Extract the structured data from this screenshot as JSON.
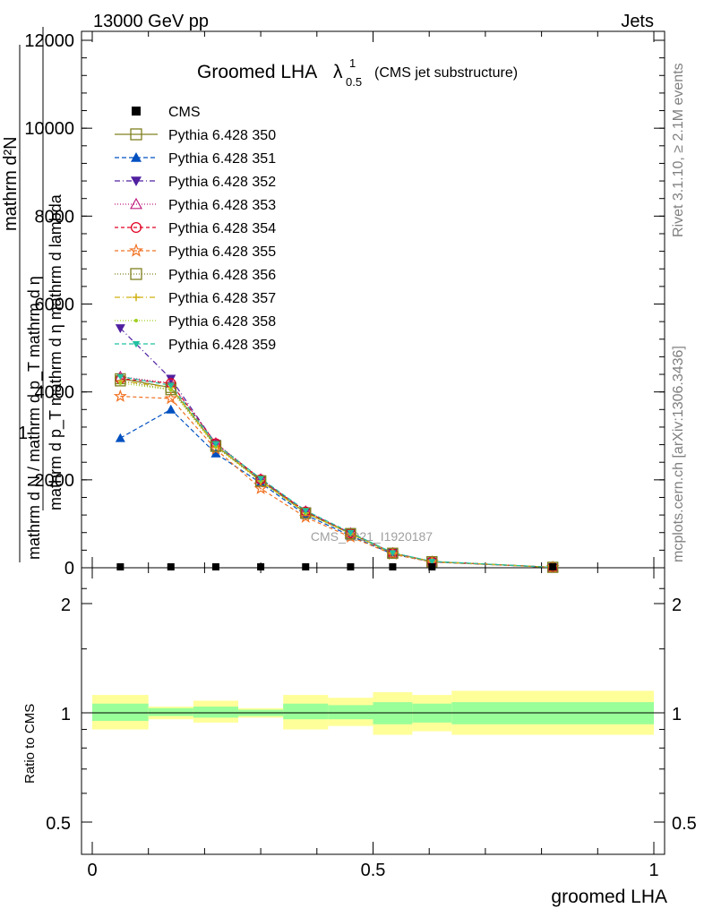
{
  "header": {
    "left": "13000 GeV pp",
    "right": "Jets"
  },
  "side_labels": {
    "rivet": "Rivet 3.1.10, ≥ 2.1M events",
    "mcplots": "mcplots.cern.ch [arXiv:1306.3436]"
  },
  "watermark": "CMS_2021_I1920187",
  "chart_data": {
    "type": "line",
    "title_main": "Groomed LHA",
    "title_lambda": "λ",
    "title_sup": "1",
    "title_sub": "0.5",
    "title_suffix": "(CMS jet substructure)",
    "ylabel_parts": [
      "1",
      "mathrm d N / mathrm d p",
      "T",
      "mathrm d η",
      "mathrm d",
      "2",
      "N",
      "mathrm d p",
      "T",
      "mathrm d η mathrm d lambda"
    ],
    "ylabel_main_top": "mathrm d²N",
    "ylabel_main_bottom": "mathrm d p_T mathrm d η mathrm d lambda",
    "ylabel_left_one": "1",
    "ylabel_left_frac": "mathrm d N / mathrm d p_T mathrm d η",
    "ylabel_ratio": "Ratio to CMS",
    "xlabel": "groomed LHA",
    "xlim": [
      0,
      1
    ],
    "ylim": [
      0,
      12000
    ],
    "yticks": [
      "0",
      "2000",
      "4000",
      "6000",
      "8000",
      "10000",
      "12000"
    ],
    "ratio_ylim": [
      0.42,
      2.4
    ],
    "ratio_yticks": [
      "0.5",
      "1",
      "2"
    ],
    "xticks": [
      "0",
      "0.5",
      "1"
    ],
    "x": [
      0.05,
      0.14,
      0.22,
      0.3,
      0.38,
      0.46,
      0.535,
      0.605,
      0.82
    ],
    "cms": [
      0,
      0,
      0,
      0,
      0,
      0,
      0,
      0,
      0
    ],
    "series": [
      {
        "name": "Pythia 6.428 350",
        "color": "#808020",
        "marker": "square-open",
        "dash": "",
        "values": [
          4300,
          4100,
          2780,
          1980,
          1250,
          780,
          330,
          140,
          10
        ]
      },
      {
        "name": "Pythia 6.428 351",
        "color": "#0050c0",
        "marker": "triangle-up",
        "dash": "5,3",
        "values": [
          2950,
          3600,
          2600,
          1930,
          1200,
          730,
          310,
          130,
          10
        ]
      },
      {
        "name": "Pythia 6.428 352",
        "color": "#5020a0",
        "marker": "triangle-down",
        "dash": "6,3,1,3",
        "values": [
          5450,
          4300,
          2820,
          2010,
          1280,
          790,
          340,
          140,
          10
        ]
      },
      {
        "name": "Pythia 6.428 353",
        "color": "#c02080",
        "marker": "triangle-open",
        "dash": "1,2",
        "values": [
          4350,
          4200,
          2840,
          2020,
          1290,
          790,
          340,
          140,
          10
        ]
      },
      {
        "name": "Pythia 6.428 354",
        "color": "#e00020",
        "marker": "circle-open",
        "dash": "4,3",
        "values": [
          4300,
          4200,
          2830,
          2010,
          1280,
          780,
          330,
          140,
          10
        ]
      },
      {
        "name": "Pythia 6.428 355",
        "color": "#f07020",
        "marker": "star-open",
        "dash": "4,3",
        "values": [
          3900,
          3850,
          2700,
          1800,
          1150,
          700,
          310,
          130,
          10
        ]
      },
      {
        "name": "Pythia 6.428 356",
        "color": "#808020",
        "marker": "square-open",
        "dash": "1,2",
        "values": [
          4250,
          4050,
          2760,
          1970,
          1240,
          770,
          330,
          140,
          10
        ]
      },
      {
        "name": "Pythia 6.428 357",
        "color": "#d0b010",
        "marker": "cross",
        "dash": "6,3,1,3",
        "values": [
          4250,
          4100,
          2770,
          1980,
          1250,
          780,
          330,
          140,
          10
        ]
      },
      {
        "name": "Pythia 6.428 358",
        "color": "#a0d020",
        "marker": "dot",
        "dash": "1,2",
        "values": [
          4200,
          4050,
          2750,
          1960,
          1240,
          770,
          330,
          140,
          10
        ]
      },
      {
        "name": "Pythia 6.428 359",
        "color": "#20c0a0",
        "marker": "triangle-down-filled",
        "dash": "5,3",
        "values": [
          4350,
          4150,
          2820,
          2030,
          1300,
          800,
          340,
          145,
          10
        ]
      }
    ],
    "legend_cms_label": "CMS",
    "ratio_bands": [
      {
        "x0": 0.0,
        "x1": 0.1,
        "inner": [
          0.95,
          1.06
        ],
        "outer": [
          0.9,
          1.12
        ]
      },
      {
        "x0": 0.1,
        "x1": 0.18,
        "inner": [
          0.98,
          1.03
        ],
        "outer": [
          0.96,
          1.04
        ]
      },
      {
        "x0": 0.18,
        "x1": 0.26,
        "inner": [
          0.97,
          1.04
        ],
        "outer": [
          0.94,
          1.08
        ]
      },
      {
        "x0": 0.26,
        "x1": 0.34,
        "inner": [
          0.98,
          1.02
        ],
        "outer": [
          0.97,
          1.03
        ]
      },
      {
        "x0": 0.34,
        "x1": 0.42,
        "inner": [
          0.96,
          1.06
        ],
        "outer": [
          0.9,
          1.12
        ]
      },
      {
        "x0": 0.42,
        "x1": 0.5,
        "inner": [
          0.96,
          1.05
        ],
        "outer": [
          0.92,
          1.1
        ]
      },
      {
        "x0": 0.5,
        "x1": 0.57,
        "inner": [
          0.93,
          1.07
        ],
        "outer": [
          0.87,
          1.14
        ]
      },
      {
        "x0": 0.57,
        "x1": 0.64,
        "inner": [
          0.94,
          1.06
        ],
        "outer": [
          0.89,
          1.12
        ]
      },
      {
        "x0": 0.64,
        "x1": 1.0,
        "inner": [
          0.93,
          1.07
        ],
        "outer": [
          0.87,
          1.15
        ]
      }
    ],
    "band_colors": {
      "inner": "#99ff99",
      "outer": "#ffff99"
    },
    "legend_placement": "top-left"
  }
}
